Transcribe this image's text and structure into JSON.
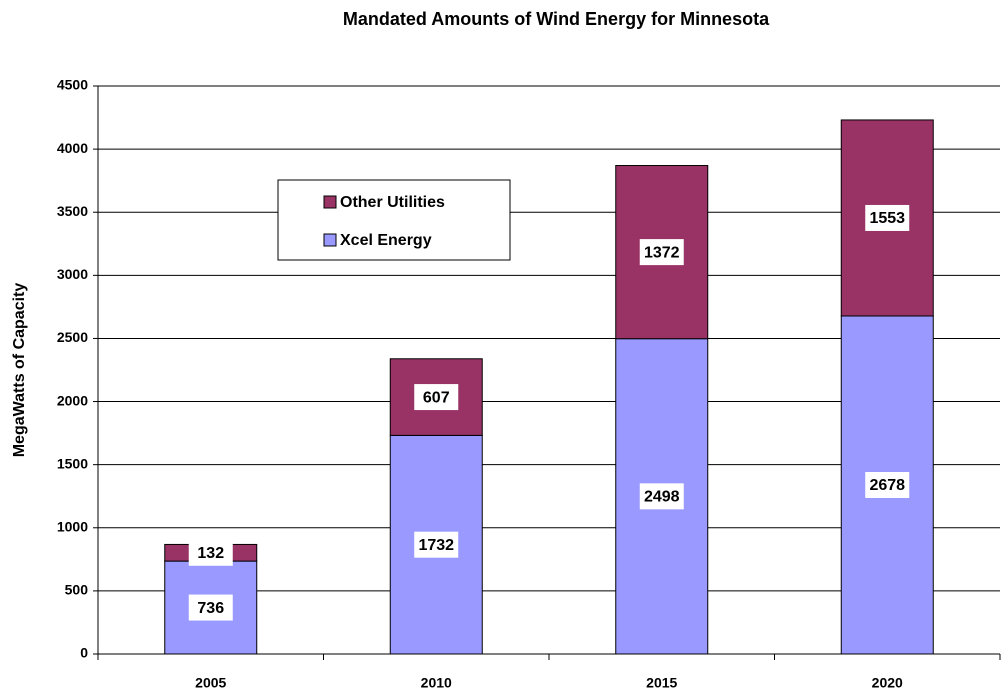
{
  "chart_data": {
    "type": "stacked_bar",
    "title": "Mandated Amounts of Wind Energy for Minnesota",
    "y_label": "MegaWatts of Capacity",
    "categories": [
      "2005",
      "2010",
      "2015",
      "2020"
    ],
    "series": [
      {
        "name": "Xcel Energy",
        "color": "#9999ff",
        "values": [
          736,
          1732,
          2498,
          2678
        ]
      },
      {
        "name": "Other Utilities",
        "color": "#993366",
        "values": [
          132,
          607,
          1372,
          1553
        ]
      }
    ],
    "ylim": [
      0,
      4500
    ],
    "yticks": [
      0,
      500,
      1000,
      1500,
      2000,
      2500,
      3000,
      3500,
      4000,
      4500
    ],
    "grid": true,
    "legend": "upper-left"
  }
}
